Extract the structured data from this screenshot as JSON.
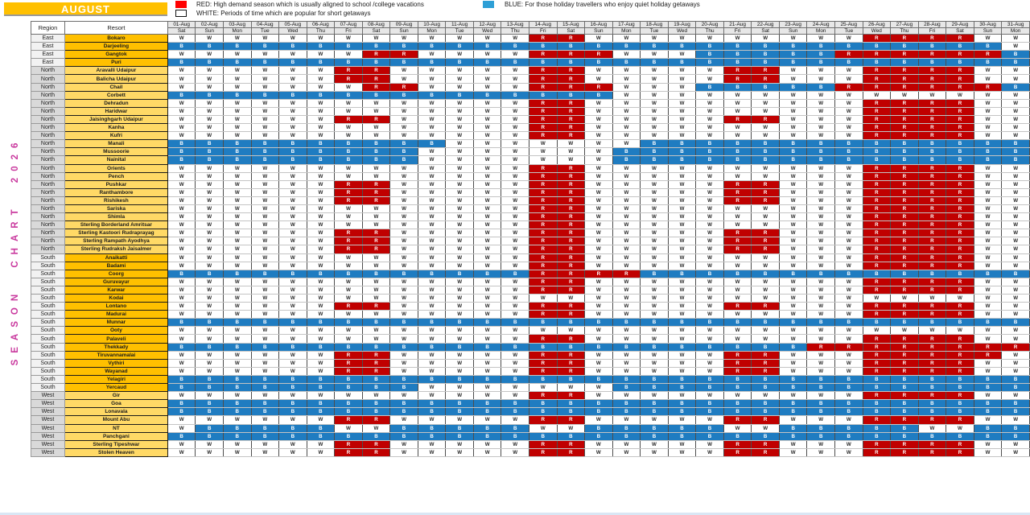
{
  "title": "AUGUST",
  "vertical_title": "SEASON CHART 2026",
  "legend": {
    "red": {
      "label": "RED: High demand season which is usually aligned to school /college vacations"
    },
    "white": {
      "label": "WHITE: Periods of time which are popular for short getaways"
    },
    "blue": {
      "label": "BLUE: For those holiday travellers who enjoy quiet holiday getaways"
    }
  },
  "table_headers": {
    "region": "Region",
    "resort": "Resort"
  },
  "colors": {
    "cell_red": "#C00000",
    "cell_blue": "#1F7CC1",
    "legend_red": "#FF0000",
    "legend_blue": "#2E9FD6",
    "gold": "#FFC000",
    "light_gold": "#FFD966",
    "region_light": "#F2F2F2",
    "region_dark": "#D9D9D9",
    "header_bg": "#E7E7E7",
    "vertical_text": "#C9399E",
    "bottom_strip": "#D9E6F4"
  },
  "chart_data": {
    "type": "heatmap",
    "title": "Season Chart 2026 - August",
    "cell_codes": {
      "W": "white - popular for short getaways",
      "R": "red - high demand season",
      "B": "blue - quiet holiday getaways"
    },
    "dates": [
      "01-Aug",
      "02-Aug",
      "03-Aug",
      "04-Aug",
      "05-Aug",
      "06-Aug",
      "07-Aug",
      "08-Aug",
      "09-Aug",
      "10-Aug",
      "11-Aug",
      "12-Aug",
      "13-Aug",
      "14-Aug",
      "15-Aug",
      "16-Aug",
      "17-Aug",
      "18-Aug",
      "19-Aug",
      "20-Aug",
      "21-Aug",
      "22-Aug",
      "23-Aug",
      "24-Aug",
      "25-Aug",
      "26-Aug",
      "27-Aug",
      "28-Aug",
      "29-Aug",
      "30-Aug",
      "31-Aug"
    ],
    "weekdays": [
      "Sat",
      "Sun",
      "Mon",
      "Tue",
      "Wed",
      "Thu",
      "Fri",
      "Sat",
      "Sun",
      "Mon",
      "Tue",
      "Wed",
      "Thu",
      "Fri",
      "Sat",
      "Sun",
      "Mon",
      "Tue",
      "Wed",
      "Thu",
      "Fri",
      "Sat",
      "Sun",
      "Mon",
      "Tue",
      "Wed",
      "Thu",
      "Fri",
      "Sat",
      "Sun",
      "Mon"
    ],
    "rows": [
      {
        "region": "East",
        "resort": "Bokaro",
        "cells": "WWWWWWWWWWWWWRRWWWWWWWWWWRRRRWW"
      },
      {
        "region": "East",
        "resort": "Darjeeling",
        "cells": "BBBBBBBBBBBBBBBBBBBBBBBBBBBBBBW"
      },
      {
        "region": "East",
        "resort": "Gangtok",
        "cells": "WWWWWWWRRWWWWRRRWWWBBBBBRRRRRRB"
      },
      {
        "region": "East",
        "resort": "Puri",
        "cells": "BBBBBBBBBBBBBBBBBBBBBBBBBBBBBBB"
      },
      {
        "region": "North",
        "resort": "Aravalli Udaipur",
        "cells": "WWWWWWRRWWWWWRRWWWWWRRWWWRRRRWW"
      },
      {
        "region": "North",
        "resort": "Balicha Udaipur",
        "cells": "WWWWWWRRWWWWWRRWWWWWRRWWWRRRRWW"
      },
      {
        "region": "North",
        "resort": "Chail",
        "cells": "WWWWWWWRRWWWWRRRWWWBBBBBRRRRRRB"
      },
      {
        "region": "North",
        "resort": "Corbett",
        "cells": "BBBBBBBBBBBBBBBBWWWWWWWWWWWWWWW"
      },
      {
        "region": "North",
        "resort": "Dehradun",
        "cells": "WWWWWWWWWWWWWRRWWWWWWWWWWRRRRWW"
      },
      {
        "region": "North",
        "resort": "Haridwar",
        "cells": "WWWWWWWWWWWWWRRWWWWWWWWWWRRRRWW"
      },
      {
        "region": "North",
        "resort": "Jaisinghgarh Udaipur",
        "cells": "WWWWWWRRWWWWWRRWWWWWRRWWWRRRRWW"
      },
      {
        "region": "North",
        "resort": "Kanha",
        "cells": "WWWWWWWWWWWWWRRWWWWWWWWWWRRRRWW"
      },
      {
        "region": "North",
        "resort": "Kufri",
        "cells": "WWWWWWWWWWWWWRRWWWWWWWWWWRRRRWW"
      },
      {
        "region": "North",
        "resort": "Manali",
        "cells": "BBBBBBBBBBWWWWWWWBBBBBBBBBBBBBB"
      },
      {
        "region": "North",
        "resort": "Mussoorie",
        "cells": "BBBBBBBBBWWWWWWWBBBBBBBBBBBBBBB"
      },
      {
        "region": "North",
        "resort": "Nainital",
        "cells": "BBBBBBBBBWWWWWWWBBBBBBBBBBBBBBB"
      },
      {
        "region": "North",
        "resort": "Orients",
        "cells": "WWWWWWWWWWWWWRRWWWWWWWWWWRRRRWW"
      },
      {
        "region": "North",
        "resort": "Pench",
        "cells": "WWWWWWWWWWWWWRRWWWWWWWWWWRRRRWW"
      },
      {
        "region": "North",
        "resort": "Pushkar",
        "cells": "WWWWWWRRWWWWWRRWWWWWRRWWWRRRRWW"
      },
      {
        "region": "North",
        "resort": "Ranthambore",
        "cells": "WWWWWWRRWWWWWRRWWWWWRRWWWRRRRWW"
      },
      {
        "region": "North",
        "resort": "Rishikesh",
        "cells": "WWWWWWRRWWWWWRRWWWWWRRWWWRRRRWW"
      },
      {
        "region": "North",
        "resort": "Sariska",
        "cells": "WWWWWWWWWWWWWRRWWWWWWWWWWRRRRWW"
      },
      {
        "region": "North",
        "resort": "Shimla",
        "cells": "WWWWWWWWWWWWWRRWWWWWWWWWWRRRRWW"
      },
      {
        "region": "North",
        "resort": "Sterling Borderland Amritsar",
        "cells": "WWWWWWWWWWWWWRRWWWWWWWWWWRRRRWW"
      },
      {
        "region": "North",
        "resort": "Sterling Kastoori Rudraprayag",
        "cells": "WWWWWWRRWWWWWRRWWWWWRRWWWRRRRWW"
      },
      {
        "region": "North",
        "resort": "Sterling Rampath Ayodhya",
        "cells": "WWWWWWRRWWWWWRRWWWWWRRWWWRRRRWW"
      },
      {
        "region": "North",
        "resort": "Sterling Rudraksh Jaisalmer",
        "cells": "WWWWWWRRWWWWWRRWWWWWRRWWWRRRRWW"
      },
      {
        "region": "South",
        "resort": "Anaikatti",
        "cells": "WWWWWWWWWWWWWRRWWWWWWWWWWRRRRWW"
      },
      {
        "region": "South",
        "resort": "Badami",
        "cells": "WWWWWWWWWWWWWRRWWWWWWWWWWRRRRWW"
      },
      {
        "region": "South",
        "resort": "Coorg",
        "cells": "BBBBBBBBBBBBBRRRRBBBBBBBBBBBBBB"
      },
      {
        "region": "South",
        "resort": "Guruvayur",
        "cells": "WWWWWWWWWWWWWRRWWWWWWWWWWRRRRWW"
      },
      {
        "region": "South",
        "resort": "Karwar",
        "cells": "WWWWWWWWWWWWWRRWWWWWWWWWWRRRRWW"
      },
      {
        "region": "South",
        "resort": "Kodai",
        "cells": "WWWWWWWWWWWWWWWWWWWWWWWWWWWWWWW"
      },
      {
        "region": "South",
        "resort": "Lontano",
        "cells": "WWWWWWRRWWWWWRRWWWWWRRWWWRRRRWW"
      },
      {
        "region": "South",
        "resort": "Madurai",
        "cells": "WWWWWWWWWWWWWRRWWWWWWWWWWRRRRWW"
      },
      {
        "region": "South",
        "resort": "Munnar",
        "cells": "BBBBBBBBBBBBBBBBBBBBBBBBBBBBBBB"
      },
      {
        "region": "South",
        "resort": "Ooty",
        "cells": "WWWWWWWWWWWWWWWWWWWWWWWWWWWWWWW"
      },
      {
        "region": "South",
        "resort": "Palaveli",
        "cells": "WWWWWWWWWWWWWRRWWWWWWWWWWRRRRWW"
      },
      {
        "region": "South",
        "resort": "Thekkady",
        "cells": "BBBBBBBBBBBBBBBBBBBBBBBRRRRRRRR"
      },
      {
        "region": "South",
        "resort": "Tiruvannamalai",
        "cells": "WWWWWWRRWWWWWRRWWWWWRRWWWRRRRRW"
      },
      {
        "region": "South",
        "resort": "Vythiri",
        "cells": "WWWWWWRRWWWWWRRWWWWWRRWWWRRRRWW"
      },
      {
        "region": "South",
        "resort": "Wayanad",
        "cells": "WWWWWWRRWWWWWRRWWWWWRRWWWRRRRWW"
      },
      {
        "region": "South",
        "resort": "Yelagiri",
        "cells": "BBBBBBBBBBBBBBBBBBBBBBBBBBBBBBB"
      },
      {
        "region": "South",
        "resort": "Yercaud",
        "cells": "BBBBBBBBBWWWWWWWBBBBBBBBBBBBBBB"
      },
      {
        "region": "West",
        "resort": "Gir",
        "cells": "WWWWWWWWWWWWWRRWWWWWWWWWWRRRRWW"
      },
      {
        "region": "West",
        "resort": "Goa",
        "cells": "BBBBBBBBBBBBBBBBBBBBBBBBBBBBBBB"
      },
      {
        "region": "West",
        "resort": "Lonavala",
        "cells": "BBBBBBBBBBBBBBBBBBBBBBBBBBBBBBB"
      },
      {
        "region": "West",
        "resort": "Mount Abu",
        "cells": "WWWWWWRRWWWWWRRWWWWWRRWWWRRRRWW"
      },
      {
        "region": "West",
        "resort": "NT",
        "cells": "WBBBBBWWBBBBBWWBBBBBWWBBBBBWWBB"
      },
      {
        "region": "West",
        "resort": "Panchgani",
        "cells": "BBBBBBBBBBBBBBBBBBBBBBBBBBBBBBB"
      },
      {
        "region": "West",
        "resort": "Sterling Tipeshwar",
        "cells": "WWWWWWRRWWWWWRRWWWWWRRWWWRRRRWW"
      },
      {
        "region": "West",
        "resort": "Stolen Heaven",
        "cells": "WWWWWWRRWWWWWRRWWWWWRRWWWRRRRWW"
      }
    ]
  }
}
